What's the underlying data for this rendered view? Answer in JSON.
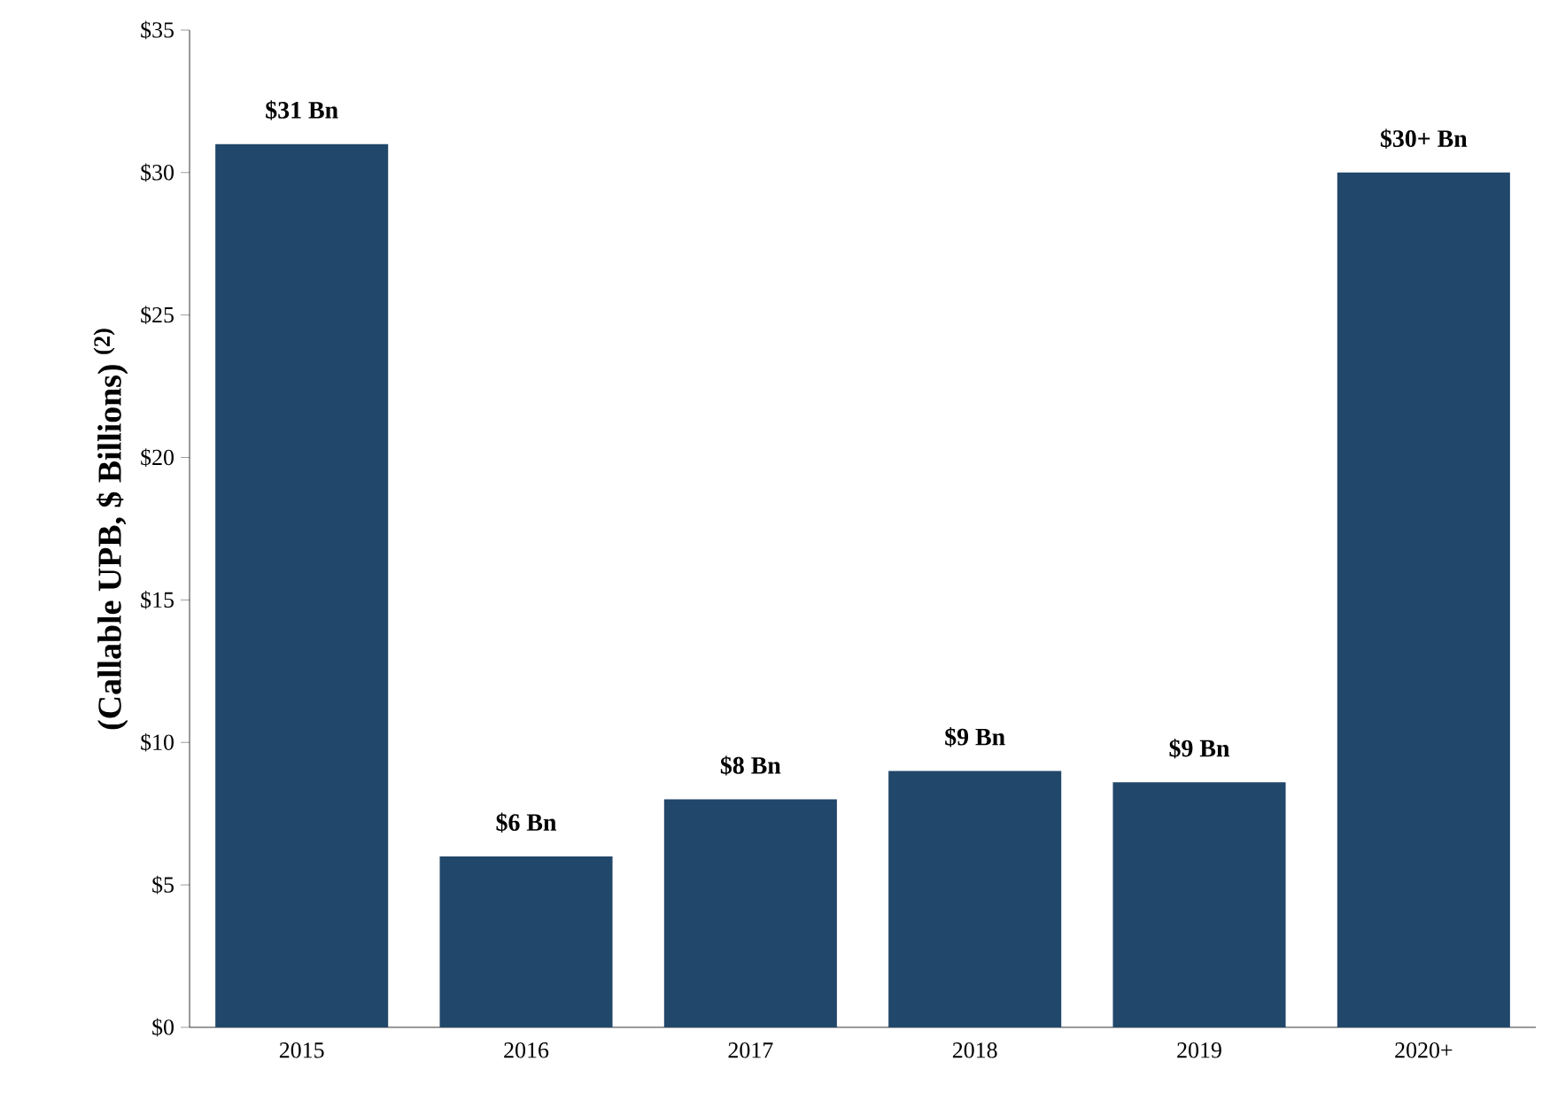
{
  "chart_data": {
    "type": "bar",
    "ylabel": "(Callable UPB, $ Billions) $^{(2)}$",
    "categories": [
      "2015",
      "2016",
      "2017",
      "2018",
      "2019",
      "2020+"
    ],
    "values": [
      31,
      6,
      8,
      9,
      8.6,
      30
    ],
    "value_labels": [
      "$31 Bn",
      "$6 Bn",
      "$8 Bn",
      "$9 Bn",
      "$9 Bn",
      "$30+ Bn"
    ],
    "color": "#21476a",
    "ylim": [
      0,
      35
    ],
    "yticks": [
      {
        "value": 0,
        "label": "$0"
      },
      {
        "value": 5,
        "label": "$5"
      },
      {
        "value": 10,
        "label": "$10"
      },
      {
        "value": 15,
        "label": "$15"
      },
      {
        "value": 20,
        "label": "$20"
      },
      {
        "value": 25,
        "label": "$25"
      },
      {
        "value": 30,
        "label": "$30"
      },
      {
        "value": 35,
        "label": "$35"
      }
    ],
    "grid": false
  }
}
